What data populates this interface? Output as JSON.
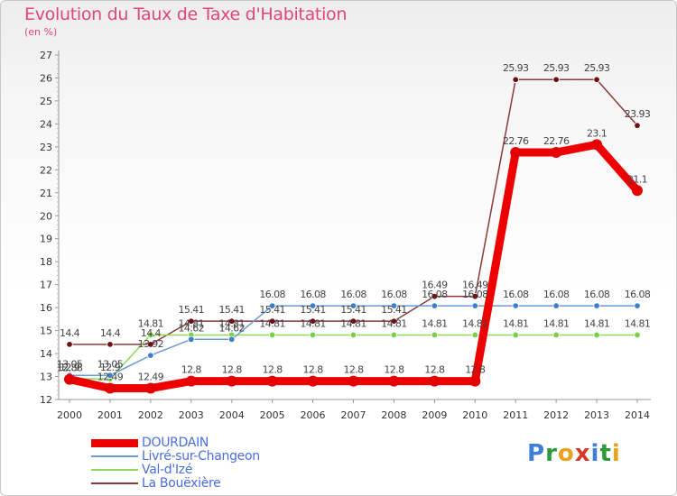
{
  "title": "Evolution du Taux de Taxe d'Habitation",
  "subtitle": "(en %)",
  "brand": {
    "letters": [
      {
        "ch": "P",
        "color": "#3f7fd8"
      },
      {
        "ch": "r",
        "color": "#2d9a3c"
      },
      {
        "ch": "o",
        "color": "#e8a21e"
      },
      {
        "ch": "x",
        "color": "#d83a2a"
      },
      {
        "ch": "i",
        "color": "#3f7fd8"
      },
      {
        "ch": "t",
        "color": "#2d9a3c"
      },
      {
        "ch": "i",
        "color": "#e8a21e"
      }
    ]
  },
  "chart_data": {
    "type": "line",
    "title": "Evolution du Taux de Taxe d'Habitation",
    "ylabel": "(en %)",
    "x": [
      2000,
      2001,
      2002,
      2003,
      2004,
      2005,
      2006,
      2007,
      2008,
      2009,
      2010,
      2011,
      2012,
      2013,
      2014
    ],
    "ylim": [
      12,
      27
    ],
    "yticks": [
      12,
      13,
      14,
      15,
      16,
      17,
      18,
      19,
      20,
      21,
      22,
      23,
      24,
      25,
      26,
      27
    ],
    "grid": false,
    "legend_position": "bottom-left",
    "series": [
      {
        "name": "La Bouëxière",
        "color": "#8a3a3a",
        "marker": "#6e1010",
        "values": [
          14.4,
          14.4,
          14.4,
          15.41,
          15.41,
          15.41,
          15.41,
          15.41,
          15.41,
          16.49,
          16.49,
          25.93,
          25.93,
          25.93,
          23.93
        ],
        "labels": [
          "14.4",
          "14.4",
          "14.4",
          "15.41",
          "15.41",
          "15.41",
          "15.41",
          "15.41",
          "15.41",
          "16.49",
          "16.49",
          "25.93",
          "25.93",
          "25.93",
          "23.93"
        ]
      },
      {
        "name": "Val-d'Izé",
        "color": "#8ed85a",
        "marker": "#7ccf48",
        "values": [
          12.9,
          12.9,
          14.81,
          14.81,
          14.81,
          14.81,
          14.81,
          14.81,
          14.81,
          14.81,
          14.81,
          14.81,
          14.81,
          14.81,
          14.81
        ],
        "labels": [
          "12.9",
          "12.9",
          "14.81",
          "14.81",
          "14.81",
          "14.81",
          "14.81",
          "14.81",
          "14.81",
          "14.81",
          "14.81",
          "14.81",
          "14.81",
          "14.81",
          "14.81"
        ]
      },
      {
        "name": "Livré-sur-Changeon",
        "color": "#6a9cd0",
        "marker": "#3f7fc8",
        "values": [
          13.05,
          13.05,
          13.92,
          14.62,
          14.62,
          16.08,
          16.08,
          16.08,
          16.08,
          16.08,
          16.08,
          16.08,
          16.08,
          16.08,
          16.08
        ],
        "labels": [
          "13.05",
          "13.05",
          "13.92",
          "14.62",
          "14.62",
          "16.08",
          "16.08",
          "16.08",
          "16.08",
          "16.08",
          "16.08",
          "16.08",
          "16.08",
          "16.08",
          "16.08"
        ]
      },
      {
        "name": "DOURDAIN",
        "color": "#ee0000",
        "marker": "#e40000",
        "values": [
          12.88,
          12.49,
          12.49,
          12.8,
          12.8,
          12.8,
          12.8,
          12.8,
          12.8,
          12.8,
          12.8,
          22.76,
          22.76,
          23.1,
          21.1
        ],
        "labels": [
          "12.88",
          "12.49",
          "12.49",
          "12.8",
          "12.8",
          "12.8",
          "12.8",
          "12.8",
          "12.8",
          "12.8",
          "12.8",
          "22.76",
          "22.76",
          "23.1",
          "21.1"
        ]
      }
    ]
  },
  "legend": [
    {
      "name": "DOURDAIN",
      "color": "#ee0000",
      "thickness": 9
    },
    {
      "name": "Livré-sur-Changeon",
      "color": "#6a9cd0",
      "thickness": 2
    },
    {
      "name": "Val-d'Izé",
      "color": "#8ed85a",
      "thickness": 2
    },
    {
      "name": "La Bouëxière",
      "color": "#8a3a3a",
      "thickness": 2
    }
  ]
}
